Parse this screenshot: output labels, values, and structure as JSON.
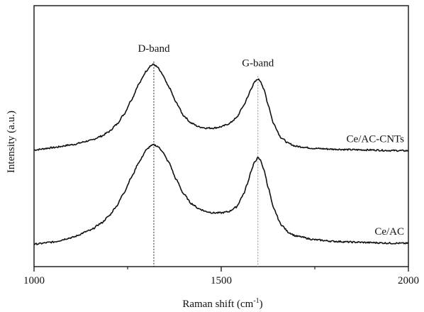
{
  "chart_data": {
    "type": "line",
    "title": "",
    "xlabel": "Raman shift (cm",
    "xlabel_sup": "-1",
    "xlabel_suffix": ")",
    "ylabel": "Intensity (a.u.)",
    "xlim": [
      1000,
      2000
    ],
    "ylim": [
      0,
      1
    ],
    "x_ticks": [
      1000,
      1500,
      2000
    ],
    "x_minor_ticks": [
      1250,
      1750
    ],
    "y_ticks": [],
    "grid": false,
    "legend": "none",
    "annotations": [
      {
        "label": "D-band",
        "x": 1320
      },
      {
        "label": "G-band",
        "x": 1598
      }
    ],
    "series": [
      {
        "name": "Ce/AC-CNTs",
        "x": [
          1000,
          1050,
          1100,
          1150,
          1180,
          1200,
          1220,
          1240,
          1260,
          1280,
          1300,
          1310,
          1320,
          1330,
          1340,
          1360,
          1380,
          1400,
          1420,
          1440,
          1460,
          1480,
          1500,
          1520,
          1540,
          1560,
          1570,
          1580,
          1590,
          1598,
          1605,
          1615,
          1625,
          1640,
          1660,
          1680,
          1700,
          1750,
          1800,
          1850,
          1900,
          1950,
          2000
        ],
        "y": [
          0.447,
          0.456,
          0.467,
          0.483,
          0.5,
          0.517,
          0.544,
          0.583,
          0.639,
          0.7,
          0.75,
          0.769,
          0.775,
          0.764,
          0.742,
          0.689,
          0.628,
          0.578,
          0.55,
          0.536,
          0.531,
          0.531,
          0.536,
          0.547,
          0.569,
          0.617,
          0.647,
          0.683,
          0.708,
          0.719,
          0.711,
          0.675,
          0.622,
          0.547,
          0.494,
          0.472,
          0.461,
          0.453,
          0.45,
          0.448,
          0.447,
          0.445,
          0.444
        ]
      },
      {
        "name": "Ce/AC",
        "x": [
          1000,
          1050,
          1100,
          1150,
          1180,
          1200,
          1220,
          1240,
          1260,
          1280,
          1300,
          1310,
          1320,
          1330,
          1340,
          1360,
          1380,
          1400,
          1420,
          1440,
          1460,
          1480,
          1500,
          1520,
          1540,
          1560,
          1570,
          1580,
          1590,
          1598,
          1605,
          1615,
          1625,
          1640,
          1660,
          1680,
          1700,
          1750,
          1800,
          1850,
          1900,
          1950,
          2000
        ],
        "y": [
          0.086,
          0.094,
          0.111,
          0.139,
          0.167,
          0.194,
          0.231,
          0.283,
          0.342,
          0.4,
          0.447,
          0.461,
          0.467,
          0.461,
          0.447,
          0.4,
          0.333,
          0.278,
          0.242,
          0.222,
          0.211,
          0.206,
          0.206,
          0.211,
          0.228,
          0.278,
          0.319,
          0.367,
          0.403,
          0.417,
          0.408,
          0.367,
          0.306,
          0.222,
          0.161,
          0.131,
          0.117,
          0.103,
          0.097,
          0.094,
          0.092,
          0.09,
          0.089
        ]
      }
    ]
  }
}
